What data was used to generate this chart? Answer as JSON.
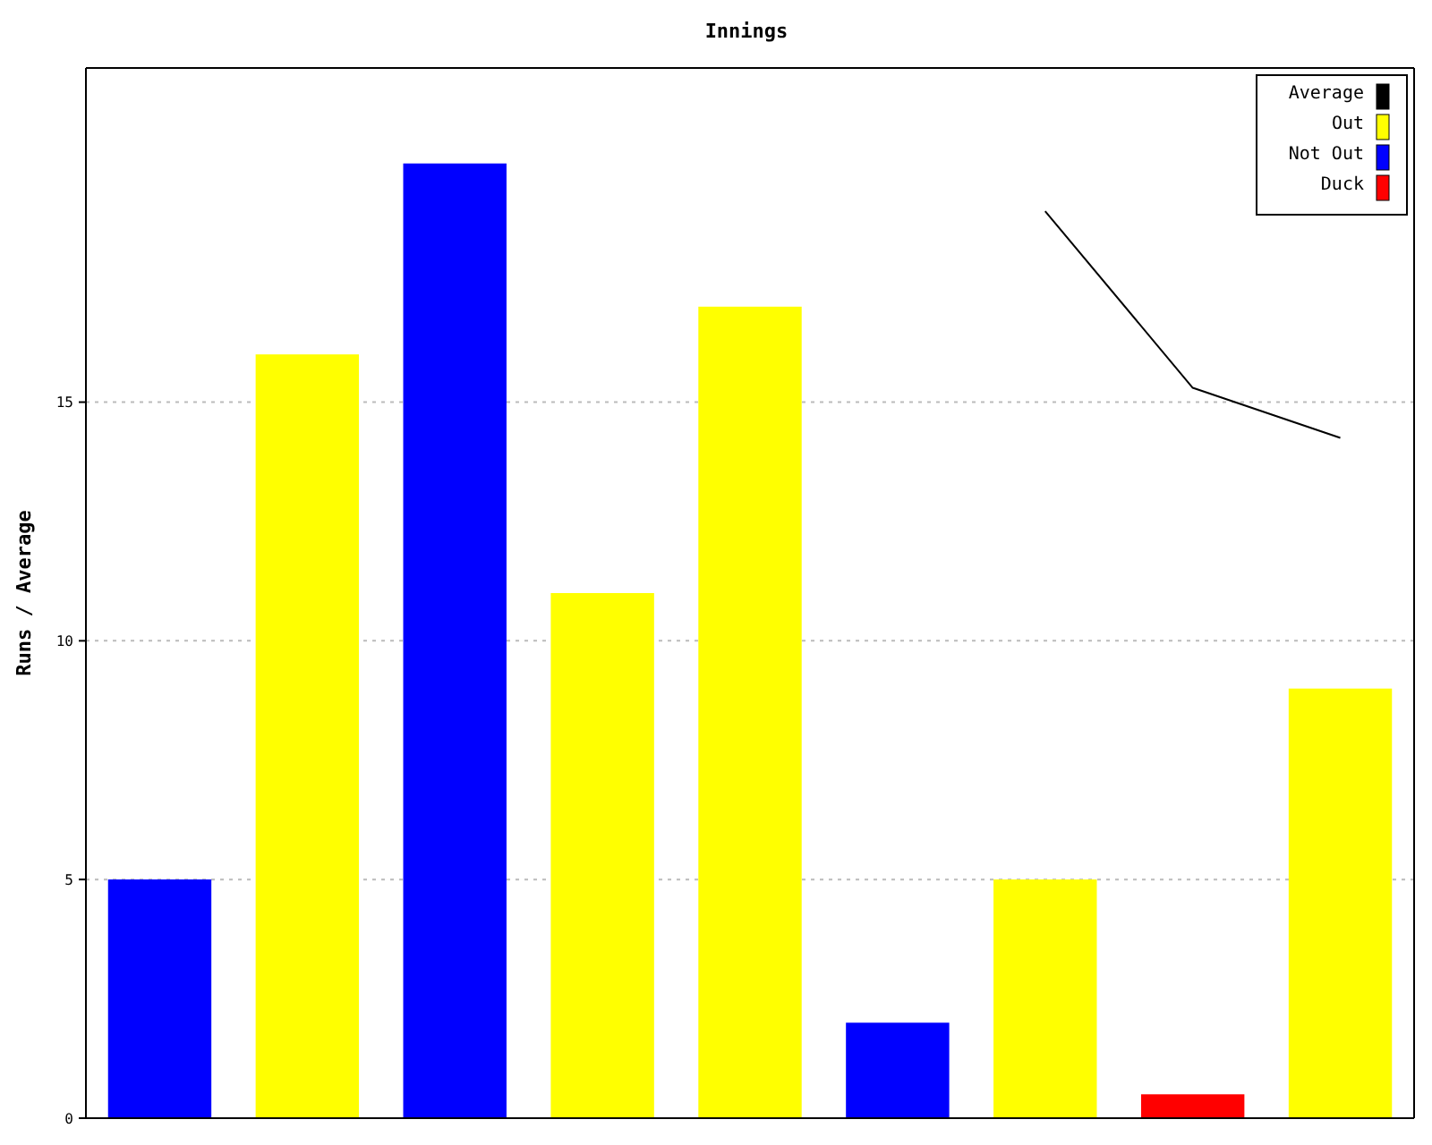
{
  "chart_data": {
    "type": "bar",
    "xlabel": "Innings",
    "ylabel": "Runs / Average",
    "categories": [
      null,
      null,
      null,
      null,
      null,
      null,
      null,
      null,
      null
    ],
    "series": [
      {
        "name": "Average",
        "type": "line",
        "color": "#000000",
        "values": [
          null,
          null,
          null,
          null,
          null,
          null,
          19,
          15.3,
          14.25
        ]
      },
      {
        "name": "Out",
        "color": "#ffff00",
        "values": [
          null,
          16,
          null,
          11,
          17,
          null,
          5,
          null,
          9
        ]
      },
      {
        "name": "Not Out",
        "color": "#0000ff",
        "values": [
          5,
          null,
          20,
          null,
          null,
          2,
          null,
          null,
          null
        ]
      },
      {
        "name": "Duck",
        "color": "#ff0000",
        "values": [
          null,
          null,
          null,
          null,
          null,
          null,
          null,
          0.5,
          null
        ]
      }
    ],
    "ylim": [
      0,
      22
    ],
    "yticks": [
      0,
      5,
      10,
      15
    ],
    "grid": "y",
    "legend": "top right",
    "tick_labels": "y",
    "marker": "none",
    "line_style": "solid"
  }
}
